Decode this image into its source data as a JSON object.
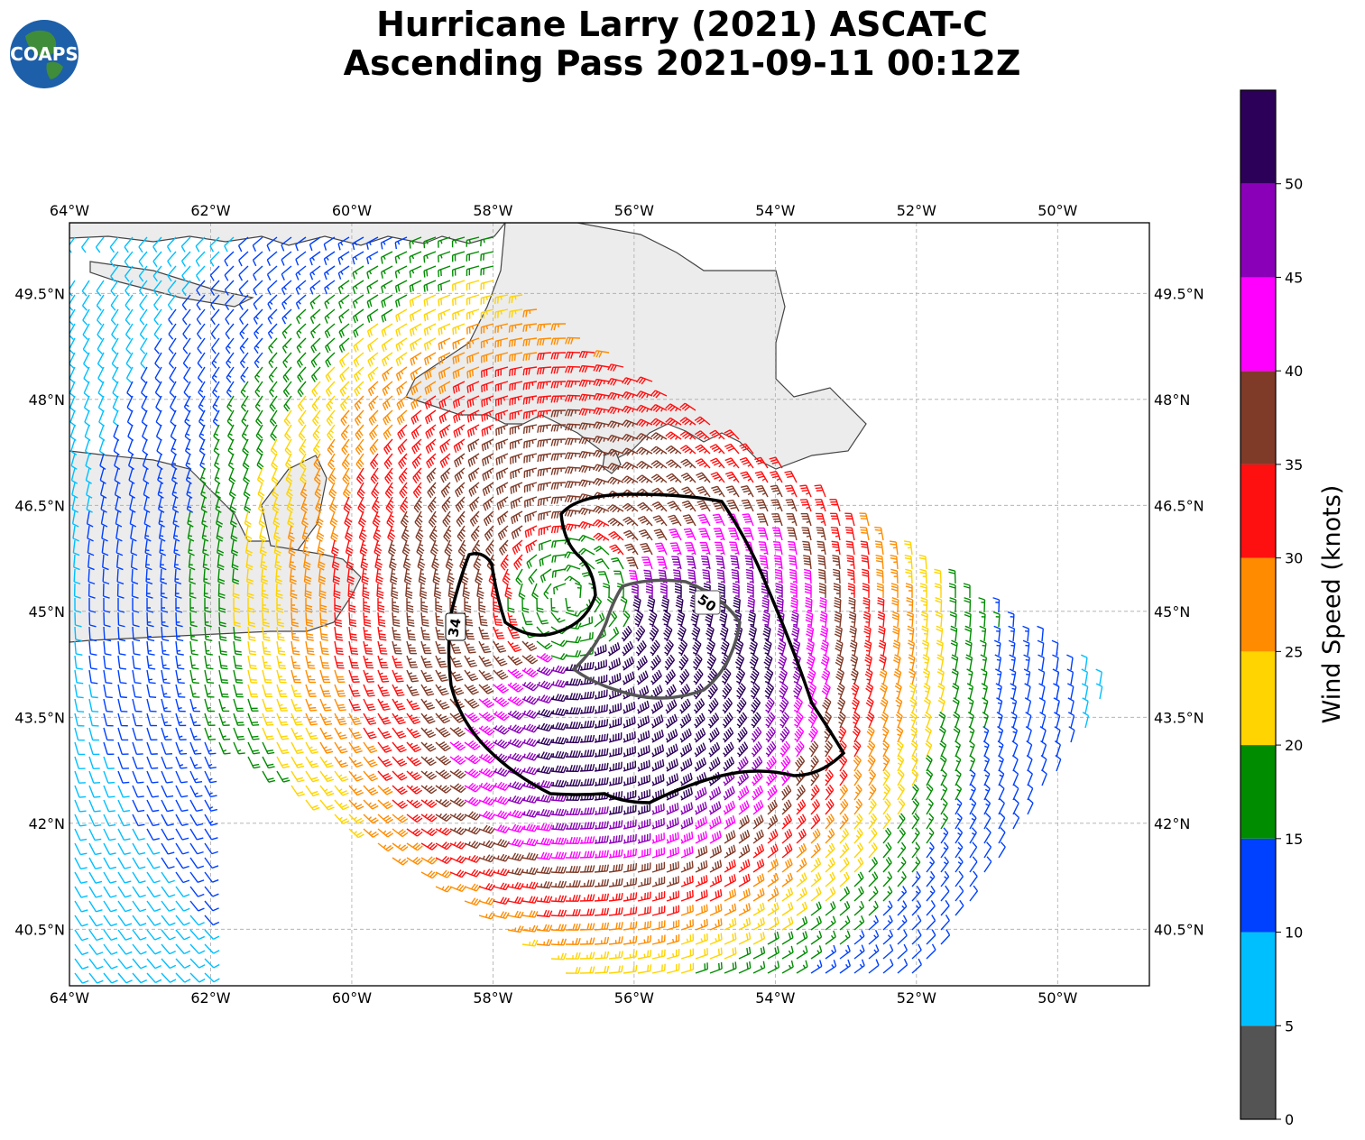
{
  "title": {
    "line1": "Hurricane Larry (2021) ASCAT-C",
    "line2": "Ascending Pass 2021-09-11 00:12Z"
  },
  "logo": {
    "text": "COAPS",
    "icon": "globe-logo-icon"
  },
  "map": {
    "lon_range": [
      -64,
      -48.7
    ],
    "lat_range": [
      39.7,
      50.5
    ],
    "lon_ticks": [
      {
        "value": -64,
        "label": "64°W"
      },
      {
        "value": -62,
        "label": "62°W"
      },
      {
        "value": -60,
        "label": "60°W"
      },
      {
        "value": -58,
        "label": "58°W"
      },
      {
        "value": -56,
        "label": "56°W"
      },
      {
        "value": -54,
        "label": "54°W"
      },
      {
        "value": -52,
        "label": "52°W"
      },
      {
        "value": -50,
        "label": "50°W"
      }
    ],
    "lat_ticks": [
      {
        "value": 49.5,
        "label": "49.5°N"
      },
      {
        "value": 48,
        "label": "48°N"
      },
      {
        "value": 46.5,
        "label": "46.5°N"
      },
      {
        "value": 45,
        "label": "45°N"
      },
      {
        "value": 43.5,
        "label": "43.5°N"
      },
      {
        "value": 42,
        "label": "42°N"
      },
      {
        "value": 40.5,
        "label": "40.5°N"
      }
    ],
    "grid": true,
    "land_color": "#ececec",
    "storm_center": {
      "lon": -56.9,
      "lat": 45.2
    }
  },
  "contours": [
    {
      "label": "34",
      "color": "#000000"
    },
    {
      "label": "50",
      "color": "#555555"
    }
  ],
  "colorbar": {
    "label": "Wind Speed (knots)",
    "bins": [
      {
        "min": 0,
        "max": 5,
        "color": "#545454"
      },
      {
        "min": 5,
        "max": 10,
        "color": "#00bfff"
      },
      {
        "min": 10,
        "max": 15,
        "color": "#0040ff"
      },
      {
        "min": 15,
        "max": 20,
        "color": "#008c00"
      },
      {
        "min": 20,
        "max": 25,
        "color": "#ffd400"
      },
      {
        "min": 25,
        "max": 30,
        "color": "#ff8c00"
      },
      {
        "min": 30,
        "max": 35,
        "color": "#ff1010"
      },
      {
        "min": 35,
        "max": 40,
        "color": "#7f3a28"
      },
      {
        "min": 40,
        "max": 45,
        "color": "#ff00ff"
      },
      {
        "min": 45,
        "max": 50,
        "color": "#8a00b8"
      },
      {
        "min": 50,
        "max": 55,
        "color": "#2c0058"
      }
    ],
    "tick_labels": [
      "0",
      "5",
      "10",
      "15",
      "20",
      "25",
      "30",
      "35",
      "40",
      "45",
      "50"
    ]
  }
}
